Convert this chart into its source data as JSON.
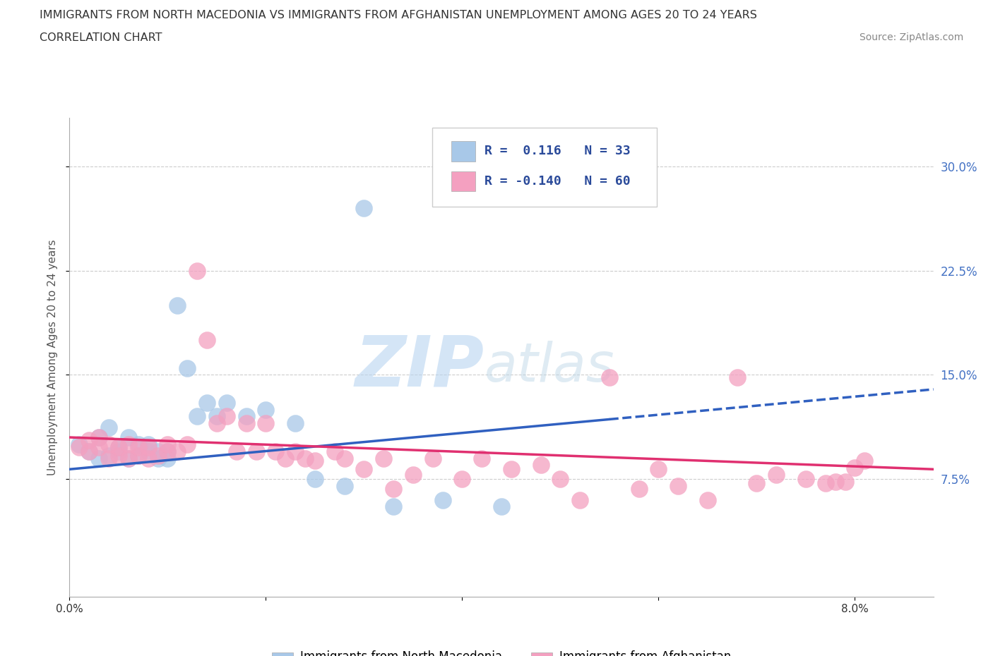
{
  "title_line1": "IMMIGRANTS FROM NORTH MACEDONIA VS IMMIGRANTS FROM AFGHANISTAN UNEMPLOYMENT AMONG AGES 20 TO 24 YEARS",
  "title_line2": "CORRELATION CHART",
  "source_text": "Source: ZipAtlas.com",
  "ylabel": "Unemployment Among Ages 20 to 24 years",
  "legend_label1": "Immigrants from North Macedonia",
  "legend_label2": "Immigrants from Afghanistan",
  "r1": 0.116,
  "n1": 33,
  "r2": -0.14,
  "n2": 60,
  "color1": "#a8c8e8",
  "color2": "#f4a0c0",
  "trend_color1": "#3060c0",
  "trend_color2": "#e03070",
  "bg_color": "#ffffff",
  "grid_color": "#cccccc",
  "watermark": "ZIPatlas",
  "xlim": [
    0.0,
    0.088
  ],
  "ylim": [
    -0.01,
    0.335
  ],
  "ytick_vals": [
    0.075,
    0.15,
    0.225,
    0.3
  ],
  "ytick_labels": [
    "7.5%",
    "15.0%",
    "22.5%",
    "30.0%"
  ],
  "xtick_vals": [
    0.0,
    0.08
  ],
  "xtick_labels": [
    "0.0%",
    "8.0%"
  ],
  "yaxis_color": "#4472c4",
  "scatter1_x": [
    0.001,
    0.002,
    0.003,
    0.003,
    0.004,
    0.004,
    0.005,
    0.005,
    0.006,
    0.006,
    0.007,
    0.007,
    0.008,
    0.008,
    0.009,
    0.009,
    0.01,
    0.01,
    0.011,
    0.012,
    0.013,
    0.014,
    0.015,
    0.016,
    0.018,
    0.02,
    0.023,
    0.025,
    0.028,
    0.033,
    0.038,
    0.044,
    0.03
  ],
  "scatter1_y": [
    0.1,
    0.095,
    0.09,
    0.105,
    0.092,
    0.112,
    0.095,
    0.098,
    0.09,
    0.105,
    0.092,
    0.1,
    0.095,
    0.1,
    0.09,
    0.095,
    0.09,
    0.095,
    0.2,
    0.155,
    0.12,
    0.13,
    0.12,
    0.13,
    0.12,
    0.125,
    0.115,
    0.075,
    0.07,
    0.055,
    0.06,
    0.055,
    0.27
  ],
  "scatter2_x": [
    0.001,
    0.002,
    0.002,
    0.003,
    0.003,
    0.004,
    0.004,
    0.005,
    0.005,
    0.006,
    0.006,
    0.007,
    0.007,
    0.008,
    0.008,
    0.009,
    0.01,
    0.01,
    0.011,
    0.012,
    0.013,
    0.014,
    0.015,
    0.016,
    0.017,
    0.018,
    0.019,
    0.02,
    0.021,
    0.022,
    0.023,
    0.024,
    0.025,
    0.027,
    0.028,
    0.03,
    0.032,
    0.033,
    0.035,
    0.037,
    0.04,
    0.042,
    0.045,
    0.048,
    0.05,
    0.052,
    0.055,
    0.058,
    0.06,
    0.062,
    0.065,
    0.068,
    0.07,
    0.072,
    0.075,
    0.077,
    0.078,
    0.079,
    0.08,
    0.081
  ],
  "scatter2_y": [
    0.098,
    0.095,
    0.103,
    0.098,
    0.105,
    0.09,
    0.1,
    0.092,
    0.098,
    0.09,
    0.1,
    0.092,
    0.098,
    0.09,
    0.098,
    0.092,
    0.095,
    0.1,
    0.095,
    0.1,
    0.225,
    0.175,
    0.115,
    0.12,
    0.095,
    0.115,
    0.095,
    0.115,
    0.095,
    0.09,
    0.095,
    0.09,
    0.088,
    0.095,
    0.09,
    0.082,
    0.09,
    0.068,
    0.078,
    0.09,
    0.075,
    0.09,
    0.082,
    0.085,
    0.075,
    0.06,
    0.148,
    0.068,
    0.082,
    0.07,
    0.06,
    0.148,
    0.072,
    0.078,
    0.075,
    0.072,
    0.073,
    0.073,
    0.083,
    0.088
  ],
  "trend1_x0": 0.0,
  "trend1_y0": 0.082,
  "trend1_x1": 0.055,
  "trend1_y1": 0.118,
  "trend1_dash_x0": 0.055,
  "trend1_dash_x1": 0.088,
  "trend2_x0": 0.0,
  "trend2_y0": 0.105,
  "trend2_x1": 0.088,
  "trend2_y1": 0.082
}
